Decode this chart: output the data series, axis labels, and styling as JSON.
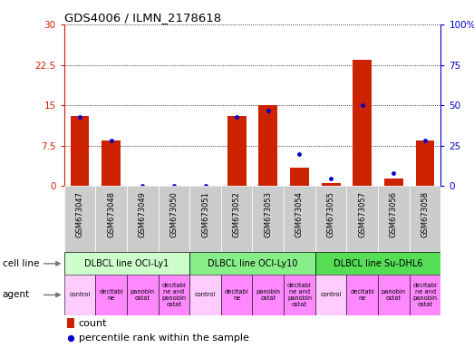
{
  "title": "GDS4006 / ILMN_2178618",
  "samples": [
    "GSM673047",
    "GSM673048",
    "GSM673049",
    "GSM673050",
    "GSM673051",
    "GSM673052",
    "GSM673053",
    "GSM673054",
    "GSM673055",
    "GSM673057",
    "GSM673056",
    "GSM673058"
  ],
  "count_values": [
    13.0,
    8.5,
    0,
    0,
    0,
    13.0,
    15.0,
    3.5,
    0.5,
    23.5,
    1.5,
    8.5
  ],
  "percentile_values": [
    43,
    28,
    0,
    0,
    0,
    43,
    47,
    20,
    5,
    50,
    8,
    28
  ],
  "ylim_left": [
    0,
    30
  ],
  "ylim_right": [
    0,
    100
  ],
  "yticks_left": [
    0,
    7.5,
    15,
    22.5,
    30
  ],
  "yticks_right": [
    0,
    25,
    50,
    75,
    100
  ],
  "bar_color": "#cc2200",
  "dot_color": "#0000cc",
  "tick_bg_color": "#cccccc",
  "left_axis_color": "#cc2200",
  "right_axis_color": "#0000cc",
  "cell_groups": [
    {
      "label": "DLBCL line OCI-Ly1",
      "start": 0,
      "end": 4,
      "color": "#ccffcc"
    },
    {
      "label": "DLBCL line OCI-Ly10",
      "start": 4,
      "end": 8,
      "color": "#88ee88"
    },
    {
      "label": "DLBCL line Su-DHL6",
      "start": 8,
      "end": 12,
      "color": "#55dd55"
    }
  ],
  "agent_items": [
    {
      "label": "control",
      "color": "#ffccff"
    },
    {
      "label": "decitabi\nne",
      "color": "#ff88ff"
    },
    {
      "label": "panobin\nostat",
      "color": "#ff88ff"
    },
    {
      "label": "decitabi\nne and\npanobin\nostat",
      "color": "#ff88ff"
    },
    {
      "label": "control",
      "color": "#ffccff"
    },
    {
      "label": "decitabi\nne",
      "color": "#ff88ff"
    },
    {
      "label": "panobin\nostat",
      "color": "#ff88ff"
    },
    {
      "label": "decitabi\nne and\npanobin\nostat",
      "color": "#ff88ff"
    },
    {
      "label": "control",
      "color": "#ffccff"
    },
    {
      "label": "decitabi\nne",
      "color": "#ff88ff"
    },
    {
      "label": "panobin\nostat",
      "color": "#ff88ff"
    },
    {
      "label": "decitabi\nne and\npanobin\nostat",
      "color": "#ff88ff"
    }
  ],
  "legend_bar_color": "#cc2200",
  "legend_dot_color": "#0000cc"
}
